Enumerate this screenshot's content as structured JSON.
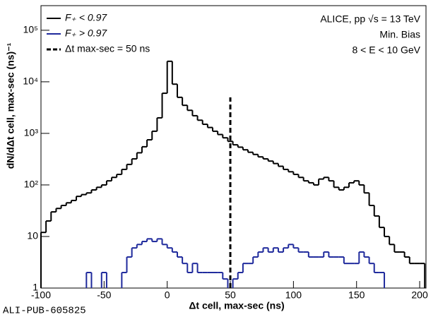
{
  "chart_data": {
    "type": "histogram",
    "x_label": "Δt cell, max-sec (ns)",
    "y_label": "dN/dΔt cell, max-sec (ns)⁻¹",
    "annotations": [
      "ALICE, pp √s = 13 TeV",
      "Min. Bias",
      "8 < E < 10 GeV"
    ],
    "footer": "ALI-PUB-605825",
    "log_y": true,
    "legend": "top-left",
    "xlim": [
      -100,
      205
    ],
    "ylim": [
      1,
      300000
    ],
    "xticks": [
      -100,
      -50,
      0,
      50,
      100,
      150,
      200
    ],
    "yticks": [
      1,
      10,
      {
        "value": 100,
        "label": "10²"
      },
      {
        "value": 1000,
        "label": "10³"
      },
      {
        "value": 10000,
        "label": "10⁴"
      },
      {
        "value": 100000,
        "label": "10⁵"
      }
    ],
    "vline": {
      "x": 50,
      "ymax": 5000,
      "name": "Δt max-sec = 50 ns",
      "color": "#000000"
    },
    "bins": [
      -100,
      -96,
      -92,
      -88,
      -84,
      -80,
      -76,
      -72,
      -68,
      -64,
      -60,
      -56,
      -52,
      -48,
      -44,
      -40,
      -36,
      -32,
      -28,
      -24,
      -20,
      -16,
      -12,
      -8,
      -4,
      0,
      4,
      8,
      12,
      16,
      20,
      24,
      28,
      32,
      36,
      40,
      44,
      48,
      52,
      56,
      60,
      64,
      68,
      72,
      76,
      80,
      84,
      88,
      92,
      96,
      100,
      104,
      108,
      112,
      116,
      120,
      124,
      128,
      132,
      136,
      140,
      144,
      148,
      152,
      156,
      160,
      164,
      168,
      172,
      176,
      180,
      184,
      188,
      192,
      196,
      200,
      204
    ],
    "series": [
      {
        "name": "F₊ < 0.97",
        "color": "#000000",
        "values": [
          12,
          20,
          30,
          35,
          40,
          45,
          50,
          60,
          65,
          70,
          80,
          90,
          100,
          120,
          140,
          160,
          200,
          250,
          320,
          420,
          550,
          750,
          1100,
          2000,
          6000,
          25000,
          9000,
          5000,
          3500,
          2800,
          2200,
          1800,
          1500,
          1300,
          1100,
          950,
          820,
          700,
          600,
          540,
          480,
          430,
          390,
          350,
          320,
          290,
          260,
          230,
          200,
          180,
          160,
          140,
          120,
          110,
          100,
          130,
          140,
          120,
          90,
          80,
          90,
          110,
          120,
          100,
          70,
          40,
          25,
          15,
          10,
          7,
          5,
          5,
          4,
          3,
          3,
          3
        ]
      },
      {
        "name": "F₊ > 0.97",
        "color": "#1f2a9c",
        "values": [
          null,
          null,
          null,
          null,
          null,
          null,
          null,
          null,
          null,
          2,
          null,
          null,
          2,
          null,
          null,
          null,
          2,
          4,
          6,
          7,
          8,
          9,
          8,
          9,
          7,
          6,
          5,
          4,
          3,
          2,
          3,
          2,
          2,
          2,
          2,
          2,
          1.5,
          null,
          1.5,
          2,
          3,
          3,
          4,
          5,
          6,
          5,
          6,
          5,
          6,
          7,
          6,
          5,
          5,
          4,
          4,
          4,
          5,
          4,
          4,
          4,
          3,
          3,
          3,
          5,
          4,
          3,
          2,
          2,
          null,
          null,
          null,
          null,
          null,
          null,
          null,
          null
        ]
      }
    ]
  }
}
